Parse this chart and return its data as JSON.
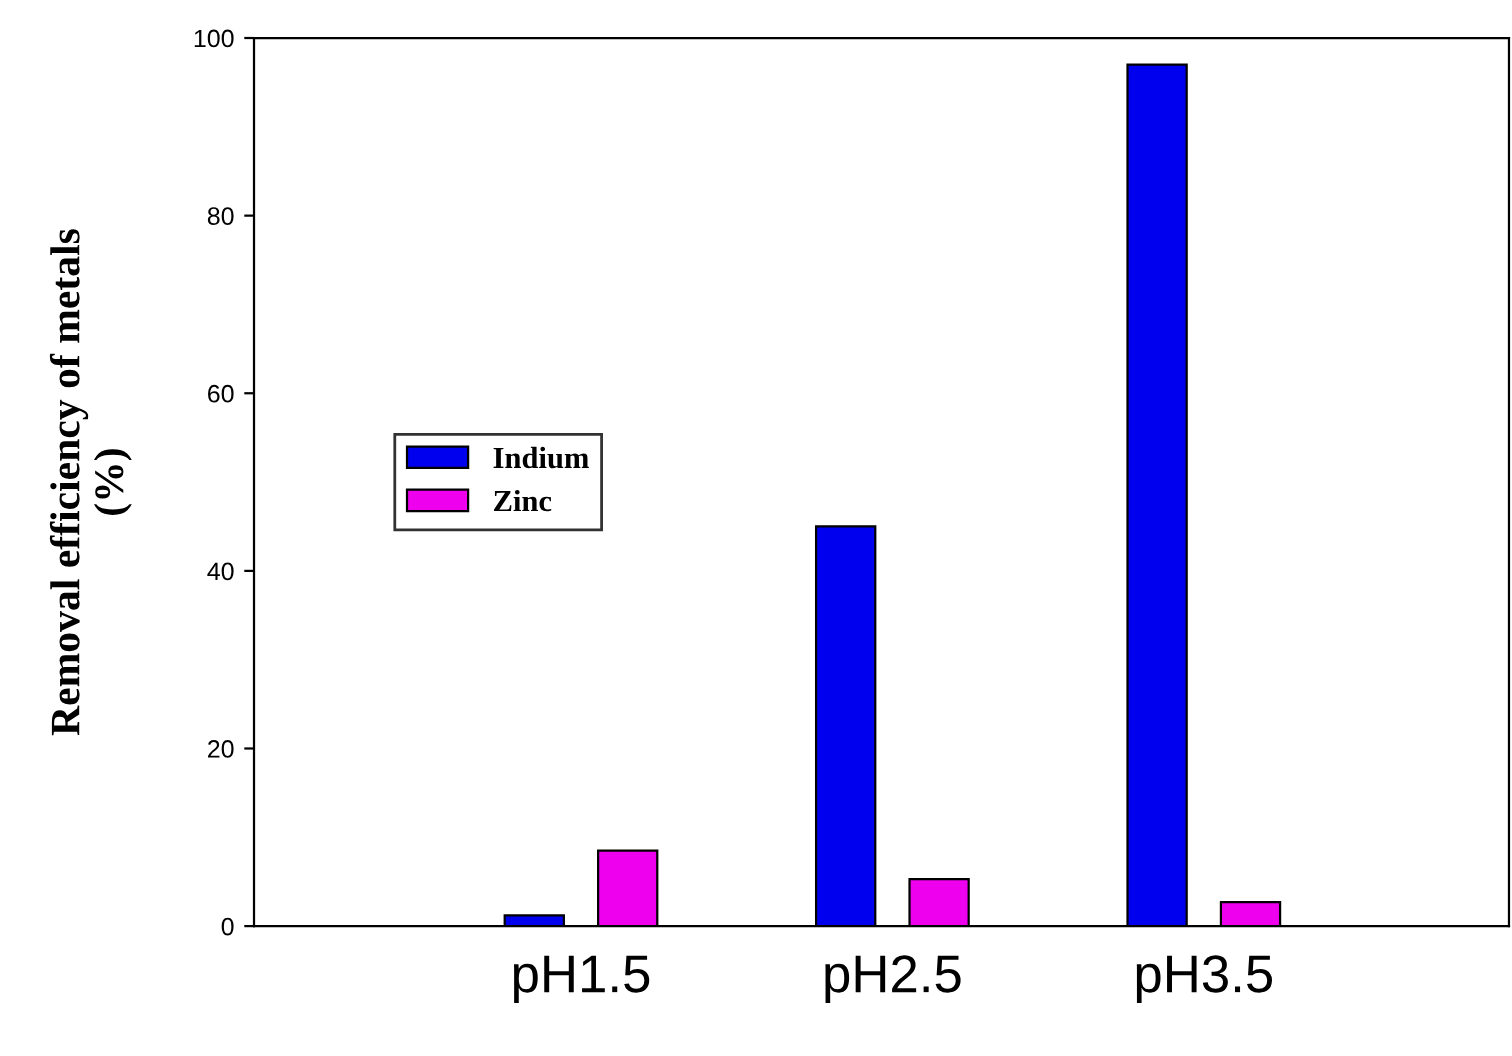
{
  "chart_data": {
    "type": "bar",
    "ylabel": "Removal efficiency of metals\n(%)",
    "categories": [
      "pH1.5",
      "pH2.5",
      "pH3.5"
    ],
    "series": [
      {
        "name": "Indium",
        "color": "#0000ee",
        "values": [
          1.2,
          45,
          97
        ]
      },
      {
        "name": "Zinc",
        "color": "#ee00ee",
        "values": [
          8.5,
          5.3,
          2.7
        ]
      }
    ],
    "ylim": [
      0,
      100
    ],
    "yticks": [
      0,
      20,
      40,
      60,
      80,
      100
    ],
    "grid": false,
    "legend": "center left"
  }
}
